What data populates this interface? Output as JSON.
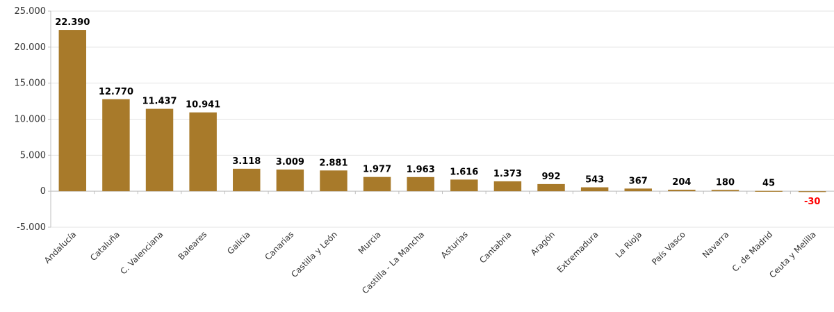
{
  "chart_data": {
    "type": "bar",
    "title": "",
    "xlabel": "",
    "ylabel": "",
    "ylim": [
      -5000,
      25000
    ],
    "yticks": [
      -5000,
      0,
      5000,
      10000,
      15000,
      20000,
      25000
    ],
    "ytick_labels": [
      "-5.000",
      "0",
      "5.000",
      "10.000",
      "15.000",
      "20.000",
      "25.000"
    ],
    "grid": true,
    "legend": "none",
    "categories": [
      "Andalucía",
      "Cataluña",
      "C. Valenciana",
      "Baleares",
      "Galicia",
      "Canarias",
      "Castilla y León",
      "Murcia",
      "Castilla - La Mancha",
      "Asturias",
      "Cantabria",
      "Aragón",
      "Extremadura",
      "La Rioja",
      "País Vasco",
      "Navarra",
      "C. de Madrid",
      "Ceuta y Melilla"
    ],
    "values": [
      22390,
      12770,
      11437,
      10941,
      3118,
      3009,
      2881,
      1977,
      1963,
      1616,
      1373,
      992,
      543,
      367,
      204,
      180,
      45,
      -30
    ],
    "value_labels": [
      "22.390",
      "12.770",
      "11.437",
      "10.941",
      "3.118",
      "3.009",
      "2.881",
      "1.977",
      "1.963",
      "1.616",
      "1.373",
      "992",
      "543",
      "367",
      "204",
      "180",
      "45",
      "-30"
    ],
    "colors": {
      "bar": "#A87A2A",
      "positive_label": "#000000",
      "negative_label": "#FF0000",
      "grid": "#E3E3E3",
      "axis": "#BFBFBF"
    }
  }
}
